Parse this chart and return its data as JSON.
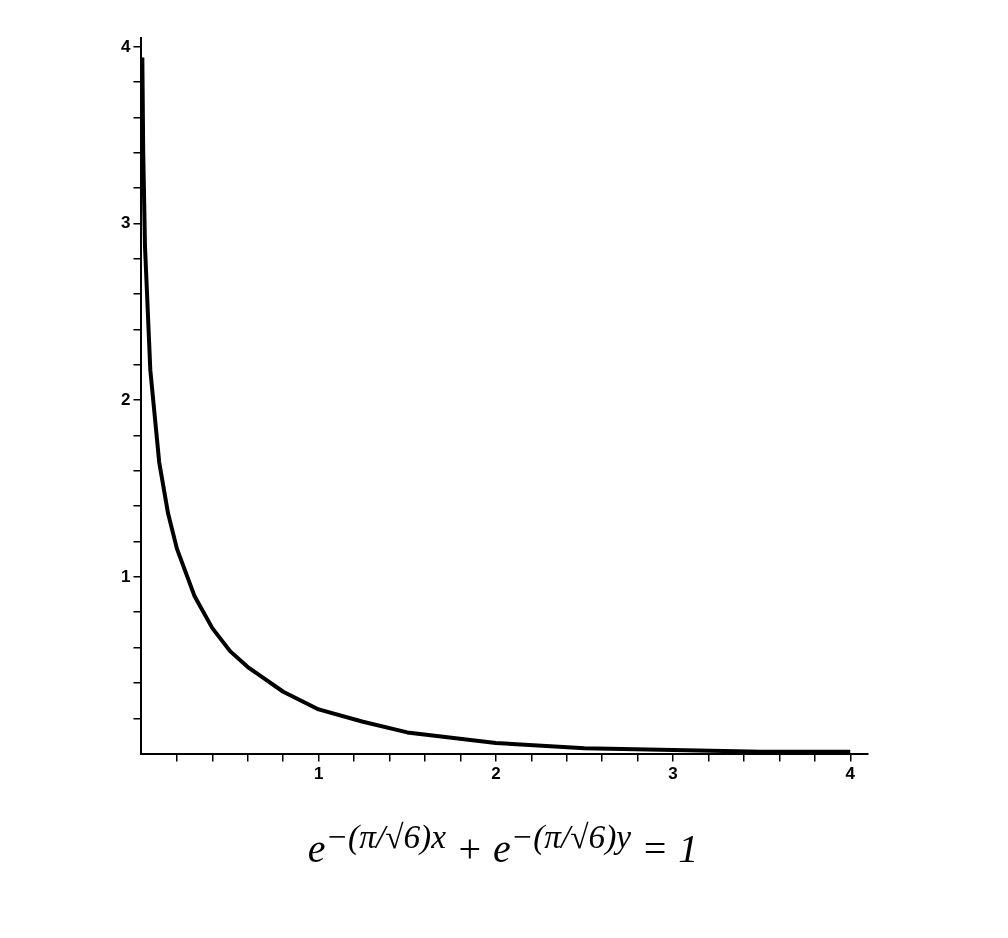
{
  "chart_data": {
    "type": "line",
    "x": [
      0.005,
      0.01,
      0.02,
      0.05,
      0.1,
      0.15,
      0.2,
      0.3,
      0.4,
      0.5,
      0.6,
      0.8,
      1,
      1.25,
      1.5,
      2,
      2.5,
      3,
      3.5,
      4
    ],
    "series": [
      {
        "color": "#000000",
        "values": [
          3.94,
          3.4,
          2.87,
          2.17,
          1.65,
          1.36,
          1.16,
          0.89,
          0.71,
          0.58,
          0.49,
          0.35,
          0.25,
          0.18,
          0.12,
          0.06,
          0.03,
          0.02,
          0.01,
          0.01
        ]
      }
    ],
    "xlim": [
      0,
      4.1
    ],
    "ylim": [
      0,
      4.05
    ],
    "xticks": [
      {
        "value": 0.2,
        "label": null
      },
      {
        "value": 0.4,
        "label": null
      },
      {
        "value": 0.6,
        "label": null
      },
      {
        "value": 0.8,
        "label": null
      },
      1,
      {
        "value": 1.2,
        "label": null
      },
      {
        "value": 1.4,
        "label": null
      },
      {
        "value": 1.6,
        "label": null
      },
      {
        "value": 1.8,
        "label": null
      },
      2,
      {
        "value": 2.2,
        "label": null
      },
      {
        "value": 2.4,
        "label": null
      },
      {
        "value": 2.6,
        "label": null
      },
      {
        "value": 2.8,
        "label": null
      },
      3,
      {
        "value": 3.2,
        "label": null
      },
      {
        "value": 3.4,
        "label": null
      },
      {
        "value": 3.6,
        "label": null
      },
      {
        "value": 3.8,
        "label": null
      },
      4
    ],
    "yticks": [
      {
        "value": 0.2,
        "label": null
      },
      {
        "value": 0.4,
        "label": null
      },
      {
        "value": 0.6,
        "label": null
      },
      {
        "value": 0.8,
        "label": null
      },
      1,
      {
        "value": 1.2,
        "label": null
      },
      {
        "value": 1.4,
        "label": null
      },
      {
        "value": 1.6,
        "label": null
      },
      {
        "value": 1.8,
        "label": null
      },
      2,
      {
        "value": 2.2,
        "label": null
      },
      {
        "value": 2.4,
        "label": null
      },
      {
        "value": 2.6,
        "label": null
      },
      {
        "value": 2.8,
        "label": null
      },
      3,
      {
        "value": 3.2,
        "label": null
      },
      {
        "value": 3.4,
        "label": null
      },
      {
        "value": 3.6,
        "label": null
      },
      {
        "value": 3.8,
        "label": null
      },
      4
    ],
    "marker": "none",
    "line_style": "solid",
    "grid": false,
    "legend": false,
    "annotations": [
      "e$^{−(π/√6)x}$ + e$^{−(π/√6)y}$ = 1"
    ]
  }
}
